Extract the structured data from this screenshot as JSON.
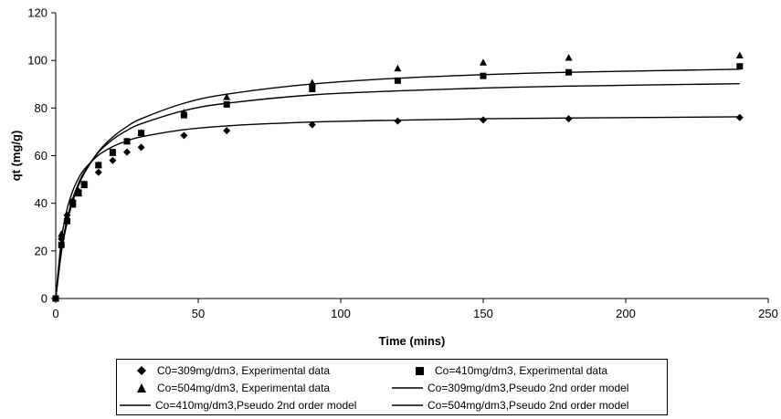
{
  "chart_data": {
    "type": "scatter",
    "xlabel": "Time (mins)",
    "ylabel": "qt (mg/g)",
    "xlim": [
      0,
      250
    ],
    "ylim": [
      0,
      120
    ],
    "xticks": [
      0,
      50,
      100,
      150,
      200,
      250
    ],
    "yticks": [
      0,
      20,
      40,
      60,
      80,
      100,
      120
    ],
    "grid": false,
    "legend_position": "bottom",
    "series": [
      {
        "name": "C0=309mg/dm3, Experimental data",
        "kind": "points",
        "marker": "diamond",
        "x": [
          0,
          2,
          4,
          6,
          8,
          10,
          15,
          20,
          25,
          30,
          45,
          60,
          90,
          120,
          150,
          180,
          240
        ],
        "y": [
          0,
          25,
          35,
          41,
          45,
          48,
          53,
          58,
          61.5,
          63.5,
          68.5,
          70.5,
          73,
          74.5,
          75,
          75.5,
          76
        ]
      },
      {
        "name": "Co=410mg/dm3, Experimental data",
        "kind": "points",
        "marker": "square",
        "x": [
          0,
          2,
          4,
          6,
          8,
          10,
          15,
          20,
          25,
          30,
          45,
          60,
          90,
          120,
          150,
          180,
          240
        ],
        "y": [
          0,
          22.5,
          32.5,
          39.5,
          44.5,
          48,
          56,
          61.5,
          66,
          69.5,
          77,
          81.5,
          88,
          91.5,
          93.5,
          95,
          97.5
        ]
      },
      {
        "name": "Co=504mg/dm3, Experimental data",
        "kind": "points",
        "marker": "triangle",
        "x": [
          0,
          2,
          4,
          6,
          8,
          10,
          15,
          20,
          25,
          30,
          45,
          60,
          90,
          120,
          150,
          180,
          240
        ],
        "y": [
          0,
          27,
          34,
          40.5,
          44,
          47.5,
          56,
          61,
          66,
          69.5,
          78,
          84.5,
          90.5,
          96.5,
          99,
          101,
          102
        ]
      },
      {
        "name": "Co=309mg/dm3,Pseudo 2nd order model",
        "kind": "line",
        "x": [
          0,
          2,
          4,
          6,
          8,
          10,
          15,
          20,
          25,
          30,
          45,
          60,
          90,
          120,
          150,
          180,
          240
        ],
        "y": [
          0,
          24.8,
          37.6,
          45.3,
          50.5,
          54.2,
          60.2,
          63.8,
          66.2,
          67.9,
          70.9,
          72.5,
          74.1,
          74.9,
          75.5,
          75.8,
          76.3
        ]
      },
      {
        "name": "Co=410mg/dm3,Pseudo 2nd order model",
        "kind": "line",
        "x": [
          0,
          2,
          4,
          6,
          8,
          10,
          15,
          20,
          25,
          30,
          45,
          60,
          90,
          120,
          150,
          180,
          240
        ],
        "y": [
          0,
          20.7,
          33.4,
          42.1,
          48.3,
          53.1,
          61.4,
          66.8,
          70.6,
          73.4,
          78.9,
          82.0,
          85.5,
          87.2,
          88.4,
          89.2,
          90.2
        ]
      },
      {
        "name": "Co=504mg/dm3,Pseudo 2nd order model",
        "kind": "line",
        "x": [
          0,
          2,
          4,
          6,
          8,
          10,
          15,
          20,
          25,
          30,
          45,
          60,
          90,
          120,
          150,
          180,
          240
        ],
        "y": [
          0,
          19.4,
          31.9,
          40.8,
          47.4,
          52.5,
          61.7,
          67.8,
          72.2,
          75.5,
          82.0,
          85.8,
          90.1,
          92.5,
          94.0,
          95.0,
          96.3
        ]
      }
    ]
  }
}
